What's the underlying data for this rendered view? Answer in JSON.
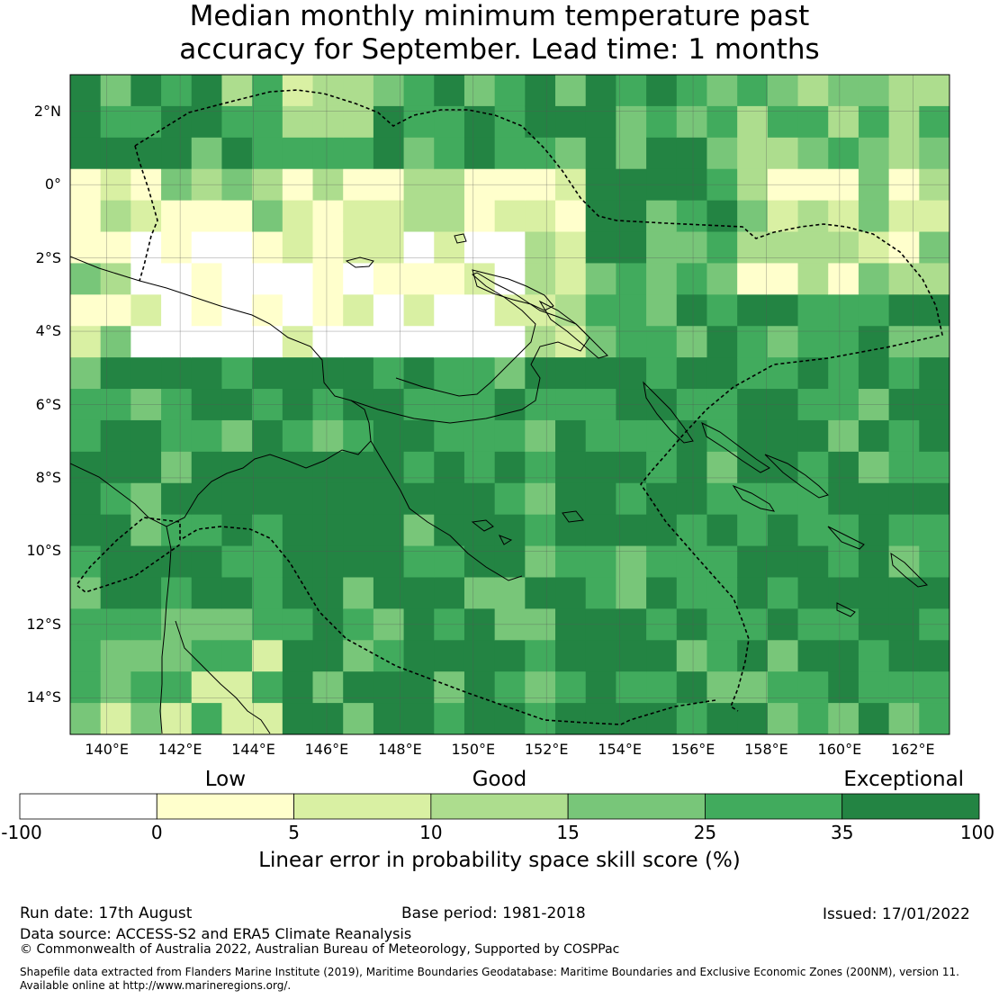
{
  "title": {
    "line1": "Median monthly minimum temperature past",
    "line2": "accuracy for September. Lead time: 1 months"
  },
  "map": {
    "lon_range": [
      139,
      163
    ],
    "lat_range": [
      -15,
      3
    ],
    "lat_ticks": [
      "2°N",
      "0°",
      "2°S",
      "4°S",
      "6°S",
      "8°S",
      "10°S",
      "12°S",
      "14°S"
    ],
    "lon_ticks": [
      "140°E",
      "142°E",
      "144°E",
      "146°E",
      "148°E",
      "150°E",
      "152°E",
      "154°E",
      "156°E",
      "158°E",
      "160°E",
      "162°E"
    ],
    "grid": true
  },
  "colorbar": {
    "categories": [
      "Low",
      "Good",
      "Exceptional"
    ],
    "ticks": [
      "-100",
      "0",
      "5",
      "10",
      "15",
      "25",
      "35",
      "100"
    ],
    "colors": [
      "#ffffff",
      "#ffffcc",
      "#d9f0a3",
      "#addd8e",
      "#78c679",
      "#41ab5d",
      "#238443"
    ],
    "label": "Linear error in probability space skill score (%)"
  },
  "footer": {
    "run_date": "Run date: 17th August",
    "base_period": "Base period: 1981-2018",
    "issued": "Issued: 17/01/2022",
    "data_source": "Data source: ACCESS-S2 and ERA5 Climate Reanalysis",
    "copyright": "© Commonwealth of Australia 2022, Australian Bureau of Meteorology, Supported by COSPPac",
    "shapefile_line1": "Shapefile data extracted from Flanders Marine Institute (2019), Maritime Boundaries Geodatabase: Maritime Boundaries and Exclusive Economic Zones (200NM), version 11.",
    "shapefile_line2": "Available online at http://www.marineregions.org/."
  }
}
